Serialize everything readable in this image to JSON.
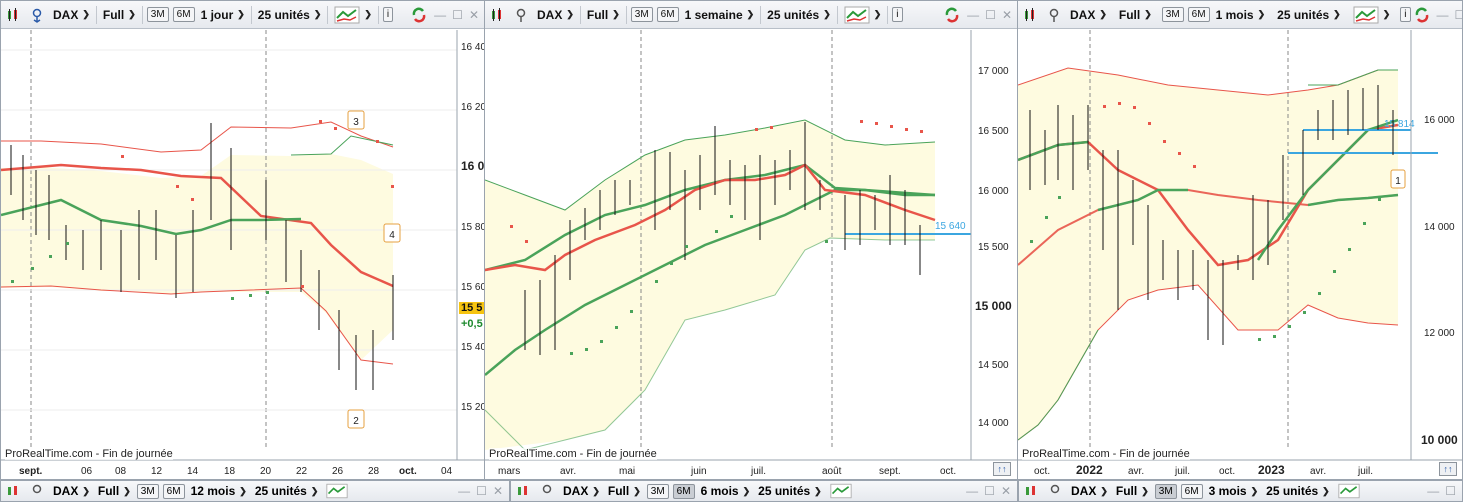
{
  "panels": [
    {
      "toolbar": {
        "symbol": "DAX",
        "mode": "Full",
        "btn3m": "3M",
        "btn6m": "6M",
        "period": "1 jour",
        "units": "25 unités",
        "info": "i"
      },
      "brand": "ProRealTime.com - Fin de journée",
      "yTicks": [
        "16 40",
        "16 20",
        "16 0",
        "15 80",
        "15 60",
        "15 40",
        "15 20"
      ],
      "xTicks": [
        "sept.",
        "06",
        "08",
        "12",
        "14",
        "18",
        "20",
        "22",
        "26",
        "28",
        "oct.",
        "04"
      ],
      "priceTag": "15 5",
      "changeTag": "+0,5",
      "markers": [
        "3",
        "4",
        "2"
      ]
    },
    {
      "toolbar": {
        "symbol": "DAX",
        "mode": "Full",
        "btn3m": "3M",
        "btn6m": "6M",
        "period": "1 semaine",
        "units": "25 unités",
        "info": "i"
      },
      "brand": "ProRealTime.com - Fin de journée",
      "yTicks": [
        "17 000",
        "16 500",
        "16 000",
        "15 500",
        "15 000",
        "14 500",
        "14 000"
      ],
      "xTicks": [
        "mars",
        "avr.",
        "mai",
        "juin",
        "juil.",
        "août",
        "sept.",
        "oct."
      ],
      "levelLabel": "15 640"
    },
    {
      "toolbar": {
        "symbol": "DAX",
        "mode": "Full",
        "btn3m": "3M",
        "btn6m": "6M",
        "period": "1 mois",
        "units": "25 unités",
        "info": "i"
      },
      "brand": "ProRealTime.com - Fin de journée",
      "yTicks": [
        "16 000",
        "14 000",
        "12 000",
        "10 000"
      ],
      "xTicks": [
        "oct.",
        "2022",
        "avr.",
        "juil.",
        "oct.",
        "2023",
        "avr.",
        "juil."
      ],
      "levelLabel": "15 814",
      "markers": [
        "1"
      ]
    }
  ],
  "bottomToolbars": [
    {
      "symbol": "DAX",
      "mode": "Full",
      "btn3m": "3M",
      "btn6m": "6M",
      "period": "12 mois",
      "units": "25 unités"
    },
    {
      "symbol": "DAX",
      "mode": "Full",
      "btn3m": "3M",
      "btn6m": "6M",
      "period": "6 mois",
      "units": "25 unités"
    },
    {
      "symbol": "DAX",
      "mode": "Full",
      "btn3m": "3M",
      "btn6m": "6M",
      "period": "3 mois",
      "units": "25 unités"
    }
  ],
  "colors": {
    "band": "#fefbe0",
    "green": "#4aa35a",
    "red": "#e8554a",
    "blue": "#3ba6e0",
    "priceBg": "#f6c40f"
  }
}
